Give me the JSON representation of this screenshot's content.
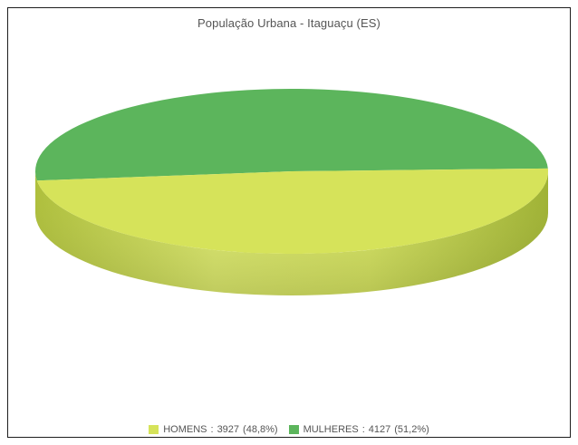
{
  "chart_data": {
    "type": "pie",
    "title": "População Urbana - Itaguaçu (ES)",
    "slices": [
      {
        "label": "HOMENS",
        "value": 3927,
        "percent_label": "(48,8%)",
        "color": "#d6e35a",
        "side_color": "#b4c63f"
      },
      {
        "label": "MULHERES",
        "value": 4127,
        "percent_label": "(51,2%)",
        "color": "#5cb55c",
        "side_color": "#3f8f3f"
      }
    ],
    "style": "3d-pie",
    "legend_position": "bottom"
  }
}
